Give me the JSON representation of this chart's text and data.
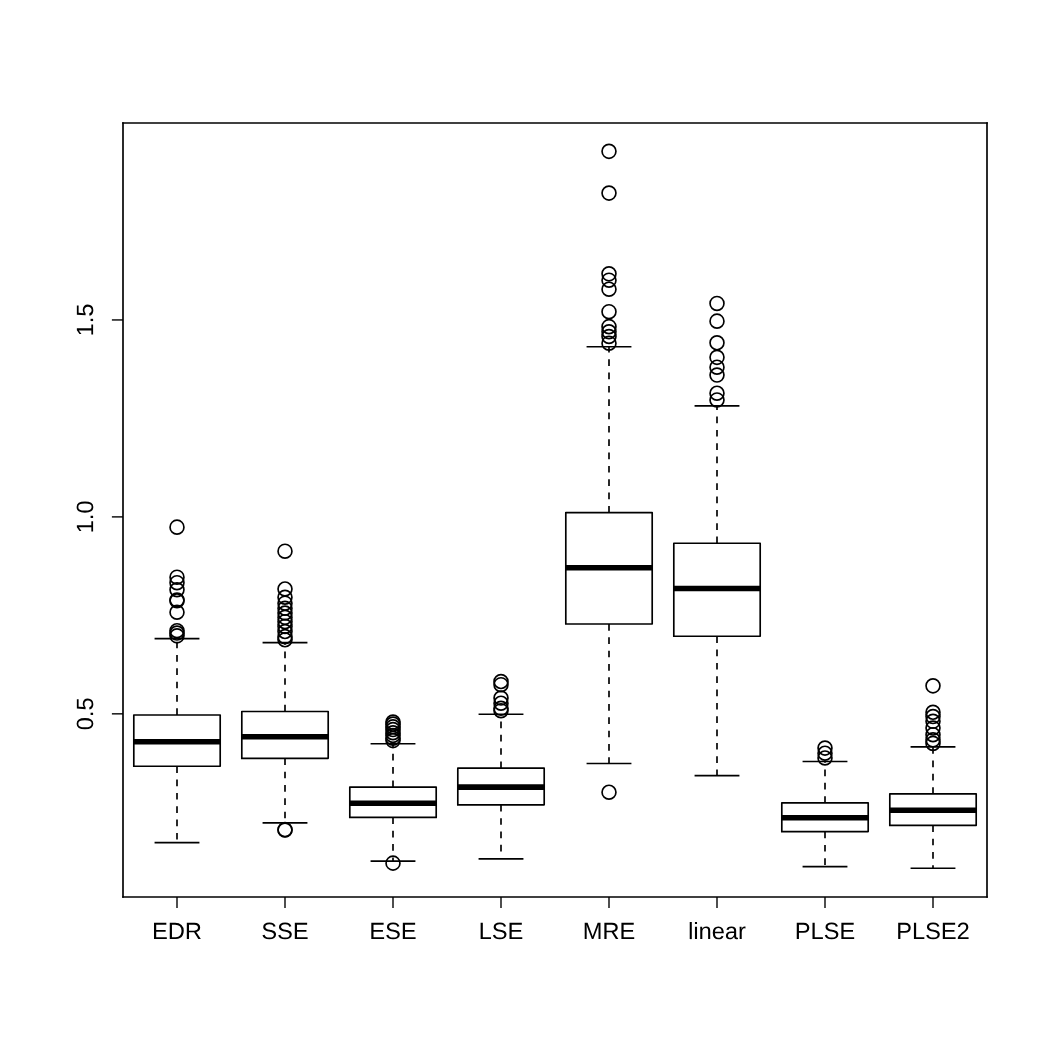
{
  "chart_data": {
    "type": "box",
    "categories": [
      "EDR",
      "SSE",
      "ESE",
      "LSE",
      "MRE",
      "linear",
      "PLSE",
      "PLSE2"
    ],
    "boxes": [
      {
        "low": 0.173,
        "q1": 0.367,
        "median": 0.429,
        "q3": 0.497,
        "high": 0.691,
        "outliers": [
          0.974,
          0.847,
          0.833,
          0.815,
          0.789,
          0.787,
          0.758,
          0.711,
          0.705,
          0.698
        ]
      },
      {
        "low": 0.223,
        "q1": 0.387,
        "median": 0.442,
        "q3": 0.506,
        "high": 0.681,
        "outliers": [
          0.913,
          0.817,
          0.796,
          0.781,
          0.768,
          0.756,
          0.745,
          0.734,
          0.722,
          0.709,
          0.696,
          0.688,
          0.206,
          0.205
        ]
      },
      {
        "low": 0.126,
        "q1": 0.237,
        "median": 0.273,
        "q3": 0.314,
        "high": 0.424,
        "outliers": [
          0.479,
          0.474,
          0.467,
          0.46,
          0.452,
          0.445,
          0.438,
          0.432,
          0.121
        ]
      },
      {
        "low": 0.132,
        "q1": 0.269,
        "median": 0.314,
        "q3": 0.362,
        "high": 0.499,
        "outliers": [
          0.582,
          0.574,
          0.54,
          0.527,
          0.514,
          0.508
        ]
      },
      {
        "low": 0.374,
        "q1": 0.728,
        "median": 0.871,
        "q3": 1.011,
        "high": 1.432,
        "outliers": [
          1.928,
          1.822,
          1.617,
          1.601,
          1.578,
          1.521,
          1.483,
          1.47,
          1.458,
          1.441,
          0.301
        ]
      },
      {
        "low": 0.343,
        "q1": 0.697,
        "median": 0.818,
        "q3": 0.933,
        "high": 1.282,
        "outliers": [
          1.542,
          1.497,
          1.442,
          1.405,
          1.38,
          1.36,
          1.314,
          1.297
        ]
      },
      {
        "low": 0.112,
        "q1": 0.201,
        "median": 0.236,
        "q3": 0.274,
        "high": 0.379,
        "outliers": [
          0.413,
          0.4,
          0.388
        ]
      },
      {
        "low": 0.108,
        "q1": 0.217,
        "median": 0.255,
        "q3": 0.297,
        "high": 0.416,
        "outliers": [
          0.571,
          0.504,
          0.493,
          0.481,
          0.464,
          0.447,
          0.434,
          0.425
        ]
      }
    ],
    "ylim": [
      0.035,
      2.0
    ],
    "yticks": [
      {
        "value": 0.5,
        "label": "0.5"
      },
      {
        "value": 1.0,
        "label": "1.0"
      },
      {
        "value": 1.5,
        "label": "1.5"
      }
    ],
    "grid": false
  }
}
